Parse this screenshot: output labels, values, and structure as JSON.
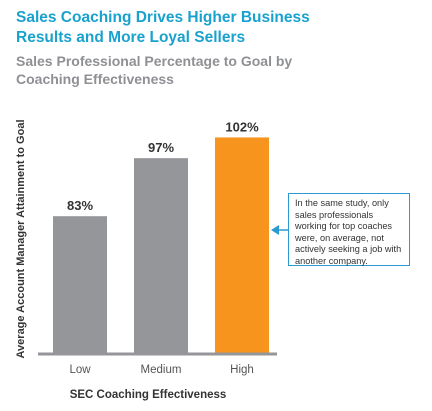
{
  "chart_data": {
    "type": "bar",
    "title": [
      "Sales Coaching Drives Higher Business",
      "Results and More Loyal Sellers"
    ],
    "subtitle": [
      "Sales Professional Percentage to Goal by",
      "Coaching Effectiveness"
    ],
    "ylabel": "Average Account Manager Attainment to Goal",
    "xlabel": "SEC Coaching Effectiveness",
    "categories": [
      "Low",
      "Medium",
      "High"
    ],
    "values": [
      83,
      97,
      102
    ],
    "value_labels": [
      "83%",
      "97%",
      "102%"
    ],
    "bar_colors": [
      "#959699",
      "#959699",
      "#f7941d"
    ],
    "ylim": [
      50,
      105
    ],
    "grid": false,
    "annotation": "In the same study, only sales professionals working for top coaches were, on average, not actively seeking a job with another company."
  },
  "colors": {
    "title": "#1aa2cf",
    "subtitle": "#8f9094",
    "axis": "#959699",
    "callout_border": "#2a9ad0"
  }
}
